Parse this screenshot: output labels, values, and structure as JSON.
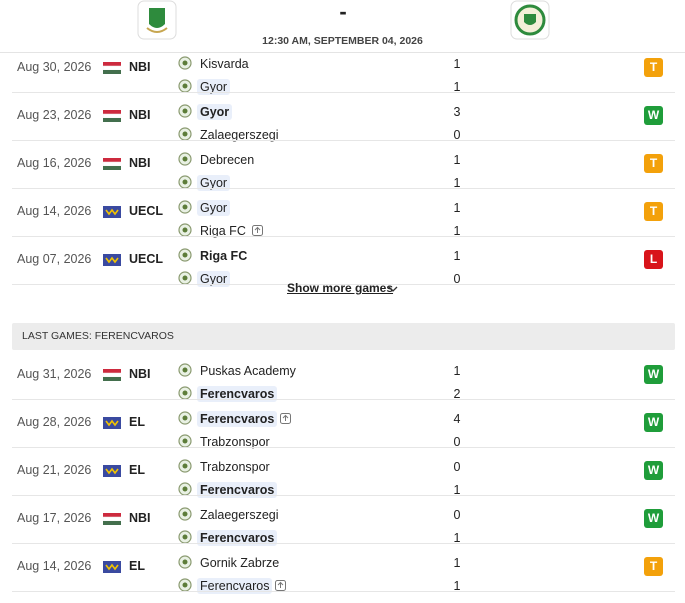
{
  "header": {
    "score": "-",
    "datetime": "12:30 AM, SEPTEMBER 04, 2026"
  },
  "badge_colors": {
    "W": "#1f9d3a",
    "T": "#f3a10b",
    "L": "#d8141a"
  },
  "sections": [
    {
      "games": [
        {
          "date": "Aug 30, 2026",
          "flag": "hungary",
          "league": "NBI",
          "home": "Kisvarda",
          "away": "Gyor",
          "home_score": 1,
          "away_score": 1,
          "result": "T",
          "focus": "away"
        },
        {
          "date": "Aug 23, 2026",
          "flag": "hungary",
          "league": "NBI",
          "home": "Gyor",
          "away": "Zalaegerszegi",
          "home_score": 3,
          "away_score": 0,
          "result": "W",
          "focus": "home",
          "bold": "home"
        },
        {
          "date": "Aug 16, 2026",
          "flag": "hungary",
          "league": "NBI",
          "home": "Debrecen",
          "away": "Gyor",
          "home_score": 1,
          "away_score": 1,
          "result": "T",
          "focus": "away"
        },
        {
          "date": "Aug 14, 2026",
          "flag": "uefa",
          "league": "UECL",
          "home": "Gyor",
          "away": "Riga FC",
          "home_score": 1,
          "away_score": 1,
          "result": "T",
          "focus": "home",
          "advanced": "away"
        },
        {
          "date": "Aug 07, 2026",
          "flag": "uefa",
          "league": "UECL",
          "home": "Riga FC",
          "away": "Gyor",
          "home_score": 1,
          "away_score": 0,
          "result": "L",
          "focus": "away",
          "bold": "home"
        }
      ],
      "show_more": "Show more games"
    },
    {
      "title": "LAST GAMES: FERENCVAROS",
      "games": [
        {
          "date": "Aug 31, 2026",
          "flag": "hungary",
          "league": "NBI",
          "home": "Puskas Academy",
          "away": "Ferencvaros",
          "home_score": 1,
          "away_score": 2,
          "result": "W",
          "focus": "away",
          "bold": "away"
        },
        {
          "date": "Aug 28, 2026",
          "flag": "uefa",
          "league": "EL",
          "home": "Ferencvaros",
          "away": "Trabzonspor",
          "home_score": 4,
          "away_score": 0,
          "result": "W",
          "focus": "home",
          "bold": "home",
          "advanced": "home"
        },
        {
          "date": "Aug 21, 2026",
          "flag": "uefa",
          "league": "EL",
          "home": "Trabzonspor",
          "away": "Ferencvaros",
          "home_score": 0,
          "away_score": 1,
          "result": "W",
          "focus": "away",
          "bold": "away"
        },
        {
          "date": "Aug 17, 2026",
          "flag": "hungary",
          "league": "NBI",
          "home": "Zalaegerszegi",
          "away": "Ferencvaros",
          "home_score": 0,
          "away_score": 1,
          "result": "W",
          "focus": "away",
          "bold": "away"
        },
        {
          "date": "Aug 14, 2026",
          "flag": "uefa",
          "league": "EL",
          "home": "Gornik Zabrze",
          "away": "Ferencvaros",
          "home_score": 1,
          "away_score": 1,
          "result": "T",
          "focus": "away",
          "advanced": "away"
        }
      ]
    }
  ]
}
